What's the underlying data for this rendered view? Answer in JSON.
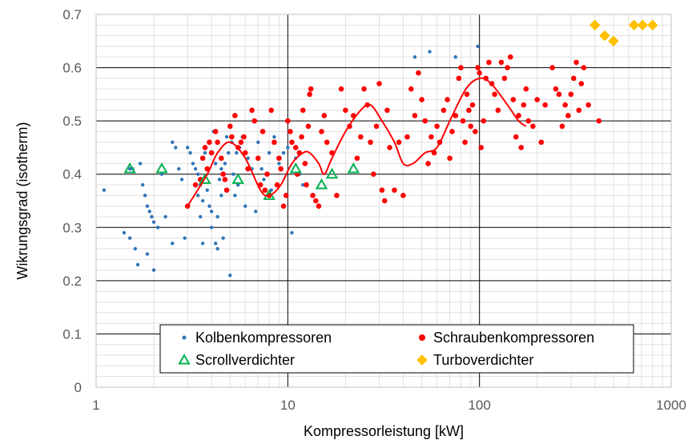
{
  "chart_data": {
    "type": "scatter",
    "xlabel": "Kompressorleistung  [kW]",
    "ylabel": "Wikrungsgrad  (isotherm)",
    "xscale": "log",
    "xlim": [
      1,
      1000
    ],
    "ylim": [
      0,
      0.7
    ],
    "x_ticks": [
      "1",
      "10",
      "100",
      "1000"
    ],
    "y_ticks": [
      "0",
      "0.1",
      "0.2",
      "0.3",
      "0.4",
      "0.5",
      "0.6",
      "0.7"
    ],
    "grid": true,
    "legend_position": "bottom-center",
    "series": [
      {
        "name": "Kolbenkompressoren",
        "marker": "dot",
        "color": "#2E75B6",
        "points": [
          [
            1.1,
            0.37
          ],
          [
            1.4,
            0.29
          ],
          [
            1.5,
            0.41
          ],
          [
            1.5,
            0.28
          ],
          [
            1.55,
            0.41
          ],
          [
            1.6,
            0.26
          ],
          [
            1.65,
            0.23
          ],
          [
            1.7,
            0.42
          ],
          [
            1.75,
            0.38
          ],
          [
            1.8,
            0.36
          ],
          [
            1.85,
            0.34
          ],
          [
            1.85,
            0.25
          ],
          [
            1.9,
            0.33
          ],
          [
            1.95,
            0.32
          ],
          [
            2.0,
            0.31
          ],
          [
            2.0,
            0.22
          ],
          [
            2.1,
            0.3
          ],
          [
            2.2,
            0.4
          ],
          [
            2.3,
            0.32
          ],
          [
            2.5,
            0.46
          ],
          [
            2.5,
            0.27
          ],
          [
            2.6,
            0.45
          ],
          [
            2.7,
            0.41
          ],
          [
            2.8,
            0.39
          ],
          [
            2.9,
            0.28
          ],
          [
            3.0,
            0.45
          ],
          [
            3.1,
            0.44
          ],
          [
            3.2,
            0.42
          ],
          [
            3.3,
            0.41
          ],
          [
            3.4,
            0.4
          ],
          [
            3.4,
            0.36
          ],
          [
            3.5,
            0.38
          ],
          [
            3.5,
            0.32
          ],
          [
            3.6,
            0.35
          ],
          [
            3.6,
            0.27
          ],
          [
            3.7,
            0.44
          ],
          [
            3.8,
            0.37
          ],
          [
            3.9,
            0.34
          ],
          [
            4.0,
            0.33
          ],
          [
            4.0,
            0.3
          ],
          [
            4.1,
            0.48
          ],
          [
            4.2,
            0.42
          ],
          [
            4.2,
            0.27
          ],
          [
            4.3,
            0.32
          ],
          [
            4.3,
            0.26
          ],
          [
            4.4,
            0.39
          ],
          [
            4.5,
            0.41
          ],
          [
            4.5,
            0.36
          ],
          [
            4.6,
            0.28
          ],
          [
            4.7,
            0.42
          ],
          [
            4.8,
            0.47
          ],
          [
            4.9,
            0.44
          ],
          [
            5.0,
            0.49
          ],
          [
            5.0,
            0.21
          ],
          [
            5.1,
            0.46
          ],
          [
            5.2,
            0.4
          ],
          [
            5.3,
            0.36
          ],
          [
            5.4,
            0.44
          ],
          [
            5.5,
            0.38
          ],
          [
            5.6,
            0.45
          ],
          [
            5.8,
            0.47
          ],
          [
            6.0,
            0.34
          ],
          [
            6.2,
            0.43
          ],
          [
            6.5,
            0.41
          ],
          [
            6.8,
            0.33
          ],
          [
            7.0,
            0.46
          ],
          [
            7.3,
            0.41
          ],
          [
            7.5,
            0.39
          ],
          [
            8.0,
            0.44
          ],
          [
            8.2,
            0.37
          ],
          [
            8.5,
            0.47
          ],
          [
            9.0,
            0.42
          ],
          [
            9.5,
            0.44
          ],
          [
            10.0,
            0.45
          ],
          [
            10.5,
            0.29
          ],
          [
            11.0,
            0.43
          ],
          [
            11.5,
            0.4
          ],
          [
            12.0,
            0.38
          ],
          [
            46,
            0.62
          ],
          [
            55,
            0.63
          ],
          [
            75,
            0.62
          ],
          [
            98,
            0.64
          ]
        ]
      },
      {
        "name": "Schraubenkompressoren",
        "marker": "dot",
        "color": "#FF0000",
        "points": [
          [
            3.0,
            0.34
          ],
          [
            3.3,
            0.38
          ],
          [
            3.5,
            0.39
          ],
          [
            3.6,
            0.43
          ],
          [
            3.7,
            0.45
          ],
          [
            3.8,
            0.41
          ],
          [
            3.9,
            0.46
          ],
          [
            4.0,
            0.44
          ],
          [
            4.2,
            0.48
          ],
          [
            4.3,
            0.46
          ],
          [
            4.5,
            0.43
          ],
          [
            4.6,
            0.4
          ],
          [
            4.7,
            0.39
          ],
          [
            4.8,
            0.37
          ],
          [
            5.0,
            0.49
          ],
          [
            5.1,
            0.47
          ],
          [
            5.3,
            0.51
          ],
          [
            5.5,
            0.45
          ],
          [
            5.7,
            0.46
          ],
          [
            5.9,
            0.47
          ],
          [
            6.0,
            0.44
          ],
          [
            6.2,
            0.41
          ],
          [
            6.5,
            0.52
          ],
          [
            6.7,
            0.5
          ],
          [
            7.0,
            0.43
          ],
          [
            7.2,
            0.38
          ],
          [
            7.4,
            0.48
          ],
          [
            7.6,
            0.37
          ],
          [
            7.8,
            0.4
          ],
          [
            8.0,
            0.36
          ],
          [
            8.2,
            0.52
          ],
          [
            8.5,
            0.46
          ],
          [
            8.8,
            0.38
          ],
          [
            9.0,
            0.43
          ],
          [
            9.2,
            0.41
          ],
          [
            9.5,
            0.34
          ],
          [
            9.8,
            0.36
          ],
          [
            10.0,
            0.5
          ],
          [
            10.3,
            0.48
          ],
          [
            10.5,
            0.46
          ],
          [
            11.0,
            0.45
          ],
          [
            11.2,
            0.4
          ],
          [
            11.5,
            0.44
          ],
          [
            11.8,
            0.47
          ],
          [
            12.0,
            0.52
          ],
          [
            12.3,
            0.42
          ],
          [
            12.5,
            0.38
          ],
          [
            12.8,
            0.49
          ],
          [
            13.0,
            0.55
          ],
          [
            13.2,
            0.56
          ],
          [
            13.5,
            0.36
          ],
          [
            14.0,
            0.35
          ],
          [
            14.5,
            0.34
          ],
          [
            15.0,
            0.48
          ],
          [
            15.5,
            0.51
          ],
          [
            16.0,
            0.46
          ],
          [
            17.0,
            0.44
          ],
          [
            18.0,
            0.36
          ],
          [
            19.0,
            0.56
          ],
          [
            20.0,
            0.52
          ],
          [
            21.0,
            0.49
          ],
          [
            22.0,
            0.51
          ],
          [
            23.0,
            0.43
          ],
          [
            24.0,
            0.47
          ],
          [
            25.0,
            0.56
          ],
          [
            26.0,
            0.53
          ],
          [
            27.0,
            0.46
          ],
          [
            28.0,
            0.4
          ],
          [
            29.0,
            0.49
          ],
          [
            30.0,
            0.57
          ],
          [
            31.0,
            0.37
          ],
          [
            32.0,
            0.35
          ],
          [
            33.0,
            0.52
          ],
          [
            34.0,
            0.45
          ],
          [
            36.0,
            0.37
          ],
          [
            38.0,
            0.46
          ],
          [
            40.0,
            0.36
          ],
          [
            42.0,
            0.47
          ],
          [
            44.0,
            0.56
          ],
          [
            46.0,
            0.51
          ],
          [
            48.0,
            0.59
          ],
          [
            50.0,
            0.54
          ],
          [
            52.0,
            0.5
          ],
          [
            54.0,
            0.42
          ],
          [
            56.0,
            0.47
          ],
          [
            58.0,
            0.44
          ],
          [
            60.0,
            0.49
          ],
          [
            62.0,
            0.46
          ],
          [
            65.0,
            0.52
          ],
          [
            68.0,
            0.54
          ],
          [
            70.0,
            0.43
          ],
          [
            72.0,
            0.48
          ],
          [
            75.0,
            0.51
          ],
          [
            78.0,
            0.58
          ],
          [
            80.0,
            0.6
          ],
          [
            82.0,
            0.5
          ],
          [
            84.0,
            0.46
          ],
          [
            86.0,
            0.55
          ],
          [
            88.0,
            0.52
          ],
          [
            90.0,
            0.49
          ],
          [
            92.0,
            0.53
          ],
          [
            95.0,
            0.48
          ],
          [
            98.0,
            0.6
          ],
          [
            100.0,
            0.59
          ],
          [
            102.0,
            0.45
          ],
          [
            105.0,
            0.5
          ],
          [
            108.0,
            0.58
          ],
          [
            112.0,
            0.61
          ],
          [
            116.0,
            0.57
          ],
          [
            120.0,
            0.55
          ],
          [
            125.0,
            0.52
          ],
          [
            130.0,
            0.61
          ],
          [
            135.0,
            0.58
          ],
          [
            140.0,
            0.6
          ],
          [
            145.0,
            0.62
          ],
          [
            150.0,
            0.54
          ],
          [
            155.0,
            0.47
          ],
          [
            160.0,
            0.51
          ],
          [
            165.0,
            0.45
          ],
          [
            170.0,
            0.53
          ],
          [
            175.0,
            0.56
          ],
          [
            180.0,
            0.5
          ],
          [
            190.0,
            0.49
          ],
          [
            200.0,
            0.54
          ],
          [
            210.0,
            0.46
          ],
          [
            220.0,
            0.53
          ],
          [
            240.0,
            0.6
          ],
          [
            250.0,
            0.56
          ],
          [
            260.0,
            0.55
          ],
          [
            270.0,
            0.49
          ],
          [
            280.0,
            0.53
          ],
          [
            290.0,
            0.51
          ],
          [
            300.0,
            0.55
          ],
          [
            310.0,
            0.58
          ],
          [
            320.0,
            0.61
          ],
          [
            330.0,
            0.52
          ],
          [
            340.0,
            0.57
          ],
          [
            350.0,
            0.6
          ],
          [
            370.0,
            0.53
          ],
          [
            420.0,
            0.5
          ]
        ]
      },
      {
        "name": "Scrollverdichter",
        "marker": "triangle",
        "color": "#00B050",
        "points": [
          [
            1.5,
            0.41
          ],
          [
            2.2,
            0.41
          ],
          [
            3.7,
            0.39
          ],
          [
            5.5,
            0.39
          ],
          [
            8.0,
            0.36
          ],
          [
            11.0,
            0.41
          ],
          [
            15.0,
            0.38
          ],
          [
            17.0,
            0.4
          ],
          [
            22.0,
            0.41
          ]
        ]
      },
      {
        "name": "Turboverdichter",
        "marker": "diamond",
        "color": "#FFC000",
        "points": [
          [
            400,
            0.68
          ],
          [
            450,
            0.66
          ],
          [
            500,
            0.65
          ],
          [
            640,
            0.68
          ],
          [
            710,
            0.68
          ],
          [
            800,
            0.68
          ]
        ]
      }
    ],
    "trend": {
      "color": "#FF0000",
      "points": [
        [
          3.0,
          0.34
        ],
        [
          3.8,
          0.4
        ],
        [
          4.3,
          0.44
        ],
        [
          5.0,
          0.46
        ],
        [
          6.0,
          0.43
        ],
        [
          7.2,
          0.37
        ],
        [
          8.0,
          0.36
        ],
        [
          9.2,
          0.38
        ],
        [
          10.5,
          0.42
        ],
        [
          12.0,
          0.44
        ],
        [
          13.0,
          0.44
        ],
        [
          14.5,
          0.42
        ],
        [
          15.5,
          0.4
        ],
        [
          17.0,
          0.43
        ],
        [
          20.0,
          0.48
        ],
        [
          24.0,
          0.52
        ],
        [
          27.0,
          0.53
        ],
        [
          31.0,
          0.5
        ],
        [
          36.0,
          0.46
        ],
        [
          40.0,
          0.42
        ],
        [
          45.0,
          0.42
        ],
        [
          52.0,
          0.44
        ],
        [
          60.0,
          0.45
        ],
        [
          70.0,
          0.5
        ],
        [
          85.0,
          0.56
        ],
        [
          100.0,
          0.58
        ],
        [
          115.0,
          0.57
        ],
        [
          140.0,
          0.53
        ],
        [
          160.0,
          0.5
        ],
        [
          175.0,
          0.49
        ]
      ]
    }
  }
}
